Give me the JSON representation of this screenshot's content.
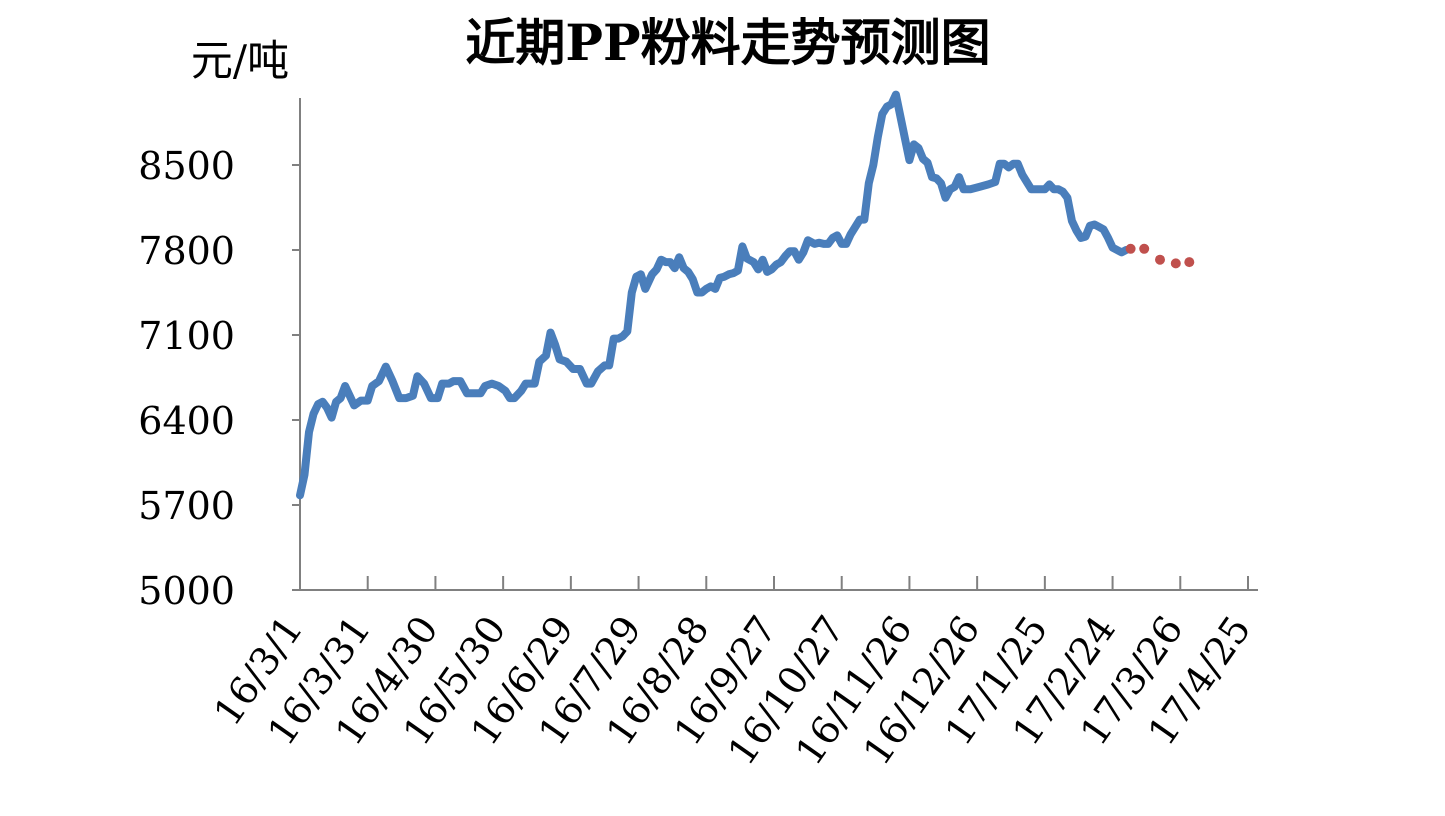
{
  "chart_data": {
    "type": "line",
    "title": "近期PP粉料走势预测图",
    "ylabel": "元/吨",
    "xlabel": "",
    "ylim": [
      5000,
      9200
    ],
    "yticks": [
      5000,
      5700,
      6400,
      7100,
      7800,
      8500
    ],
    "x_tick_labels": [
      "16/3/1",
      "16/3/31",
      "16/4/30",
      "16/5/30",
      "16/6/29",
      "16/7/29",
      "16/8/28",
      "16/9/27",
      "16/10/27",
      "16/11/26",
      "16/12/26",
      "17/1/25",
      "17/2/24",
      "17/3/26",
      "17/4/25"
    ],
    "x_tick_days": [
      0,
      30,
      60,
      90,
      120,
      150,
      180,
      210,
      240,
      270,
      300,
      330,
      360,
      390,
      420
    ],
    "grid": false,
    "legend": "none",
    "series": [
      {
        "style": "solid",
        "color": "#4a7ebb",
        "points": [
          [
            0,
            5780
          ],
          [
            2,
            5950
          ],
          [
            4,
            6300
          ],
          [
            6,
            6450
          ],
          [
            8,
            6530
          ],
          [
            10,
            6550
          ],
          [
            12,
            6500
          ],
          [
            14,
            6420
          ],
          [
            16,
            6550
          ],
          [
            18,
            6580
          ],
          [
            20,
            6680
          ],
          [
            22,
            6600
          ],
          [
            24,
            6520
          ],
          [
            27,
            6560
          ],
          [
            30,
            6560
          ],
          [
            32,
            6680
          ],
          [
            35,
            6720
          ],
          [
            38,
            6840
          ],
          [
            41,
            6720
          ],
          [
            44,
            6580
          ],
          [
            47,
            6580
          ],
          [
            50,
            6600
          ],
          [
            52,
            6760
          ],
          [
            55,
            6700
          ],
          [
            58,
            6580
          ],
          [
            61,
            6580
          ],
          [
            63,
            6700
          ],
          [
            66,
            6700
          ],
          [
            68,
            6720
          ],
          [
            71,
            6720
          ],
          [
            74,
            6620
          ],
          [
            77,
            6620
          ],
          [
            80,
            6620
          ],
          [
            82,
            6680
          ],
          [
            85,
            6700
          ],
          [
            88,
            6680
          ],
          [
            91,
            6640
          ],
          [
            93,
            6580
          ],
          [
            95,
            6580
          ],
          [
            98,
            6640
          ],
          [
            100,
            6700
          ],
          [
            104,
            6700
          ],
          [
            106,
            6880
          ],
          [
            109,
            6930
          ],
          [
            111,
            7120
          ],
          [
            113,
            7020
          ],
          [
            115,
            6900
          ],
          [
            118,
            6880
          ],
          [
            121,
            6820
          ],
          [
            124,
            6820
          ],
          [
            127,
            6700
          ],
          [
            129,
            6700
          ],
          [
            132,
            6800
          ],
          [
            135,
            6850
          ],
          [
            137,
            6850
          ],
          [
            139,
            7070
          ],
          [
            141,
            7070
          ],
          [
            143,
            7090
          ],
          [
            145,
            7130
          ],
          [
            147,
            7450
          ],
          [
            149,
            7580
          ],
          [
            151,
            7600
          ],
          [
            153,
            7480
          ],
          [
            156,
            7600
          ],
          [
            158,
            7640
          ],
          [
            160,
            7720
          ],
          [
            162,
            7700
          ],
          [
            164,
            7700
          ],
          [
            166,
            7650
          ],
          [
            168,
            7740
          ],
          [
            170,
            7650
          ],
          [
            172,
            7620
          ],
          [
            174,
            7560
          ],
          [
            176,
            7450
          ],
          [
            178,
            7450
          ],
          [
            180,
            7480
          ],
          [
            182,
            7500
          ],
          [
            184,
            7480
          ],
          [
            186,
            7570
          ],
          [
            188,
            7580
          ],
          [
            190,
            7600
          ],
          [
            192,
            7610
          ],
          [
            194,
            7630
          ],
          [
            196,
            7830
          ],
          [
            198,
            7730
          ],
          [
            201,
            7700
          ],
          [
            203,
            7640
          ],
          [
            205,
            7720
          ],
          [
            207,
            7620
          ],
          [
            209,
            7640
          ],
          [
            211,
            7680
          ],
          [
            213,
            7700
          ],
          [
            215,
            7750
          ],
          [
            217,
            7790
          ],
          [
            219,
            7790
          ],
          [
            221,
            7720
          ],
          [
            223,
            7780
          ],
          [
            225,
            7880
          ],
          [
            228,
            7850
          ],
          [
            230,
            7860
          ],
          [
            232,
            7850
          ],
          [
            234,
            7850
          ],
          [
            236,
            7900
          ],
          [
            238,
            7920
          ],
          [
            240,
            7850
          ],
          [
            242,
            7850
          ],
          [
            244,
            7930
          ],
          [
            246,
            7990
          ],
          [
            248,
            8050
          ],
          [
            250,
            8050
          ],
          [
            252,
            8350
          ],
          [
            254,
            8500
          ],
          [
            256,
            8730
          ],
          [
            258,
            8920
          ],
          [
            260,
            8980
          ],
          [
            262,
            9000
          ],
          [
            264,
            9080
          ],
          [
            266,
            8900
          ],
          [
            268,
            8720
          ],
          [
            270,
            8540
          ],
          [
            272,
            8670
          ],
          [
            274,
            8640
          ],
          [
            276,
            8550
          ],
          [
            278,
            8520
          ],
          [
            280,
            8400
          ],
          [
            282,
            8390
          ],
          [
            284,
            8350
          ],
          [
            286,
            8230
          ],
          [
            288,
            8300
          ],
          [
            290,
            8320
          ],
          [
            292,
            8400
          ],
          [
            294,
            8300
          ],
          [
            297,
            8300
          ],
          [
            301,
            8320
          ],
          [
            305,
            8340
          ],
          [
            308,
            8360
          ],
          [
            310,
            8510
          ],
          [
            312,
            8510
          ],
          [
            314,
            8480
          ],
          [
            316,
            8510
          ],
          [
            318,
            8510
          ],
          [
            320,
            8420
          ],
          [
            322,
            8360
          ],
          [
            324,
            8300
          ],
          [
            326,
            8300
          ],
          [
            328,
            8300
          ],
          [
            330,
            8300
          ],
          [
            332,
            8340
          ],
          [
            334,
            8300
          ],
          [
            336,
            8300
          ],
          [
            338,
            8280
          ],
          [
            340,
            8230
          ],
          [
            342,
            8040
          ],
          [
            344,
            7960
          ],
          [
            346,
            7900
          ],
          [
            348,
            7910
          ],
          [
            350,
            8000
          ],
          [
            352,
            8010
          ],
          [
            354,
            7990
          ],
          [
            356,
            7970
          ],
          [
            358,
            7900
          ],
          [
            360,
            7820
          ],
          [
            362,
            7800
          ],
          [
            364,
            7780
          ],
          [
            366,
            7800
          ]
        ]
      },
      {
        "style": "dotted",
        "color": "#c0504d",
        "points": [
          [
            368,
            7810
          ],
          [
            374,
            7810
          ],
          [
            381,
            7720
          ],
          [
            388,
            7690
          ],
          [
            394,
            7700
          ]
        ]
      }
    ]
  }
}
